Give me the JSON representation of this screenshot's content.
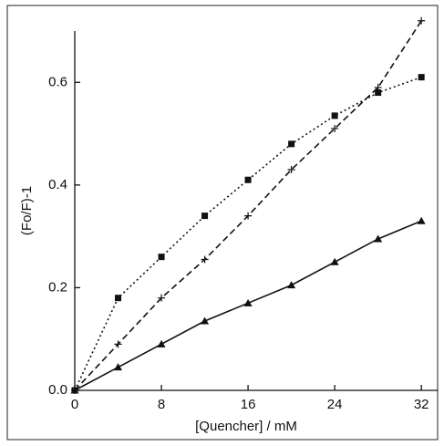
{
  "chart_data": {
    "type": "line",
    "x_label": "[Quencher] / mM",
    "y_label": "(Fo/F)-1",
    "x": [
      0,
      4,
      8,
      12,
      16,
      20,
      24,
      28,
      32
    ],
    "series": [
      {
        "color": "#111111",
        "marker": "square",
        "dash": "dotted",
        "values": [
          0,
          0.18,
          0.26,
          0.34,
          0.41,
          0.48,
          0.535,
          0.58,
          0.61
        ]
      },
      {
        "color": "#111111",
        "marker": "plus",
        "dash": "dashed",
        "values": [
          0,
          0.09,
          0.18,
          0.255,
          0.34,
          0.43,
          0.51,
          0.59,
          0.72
        ]
      },
      {
        "color": "#111111",
        "marker": "triangle",
        "dash": "solid",
        "values": [
          0,
          0.045,
          0.09,
          0.135,
          0.17,
          0.205,
          0.25,
          0.295,
          0.33
        ]
      }
    ],
    "xlim": [
      0,
      33.5
    ],
    "ylim": [
      0,
      0.7
    ],
    "xticks": [
      0,
      8,
      16,
      24,
      32
    ],
    "yticks": [
      {
        "value": 0,
        "label": "0.0"
      },
      0.2,
      0.4,
      0.6
    ]
  }
}
